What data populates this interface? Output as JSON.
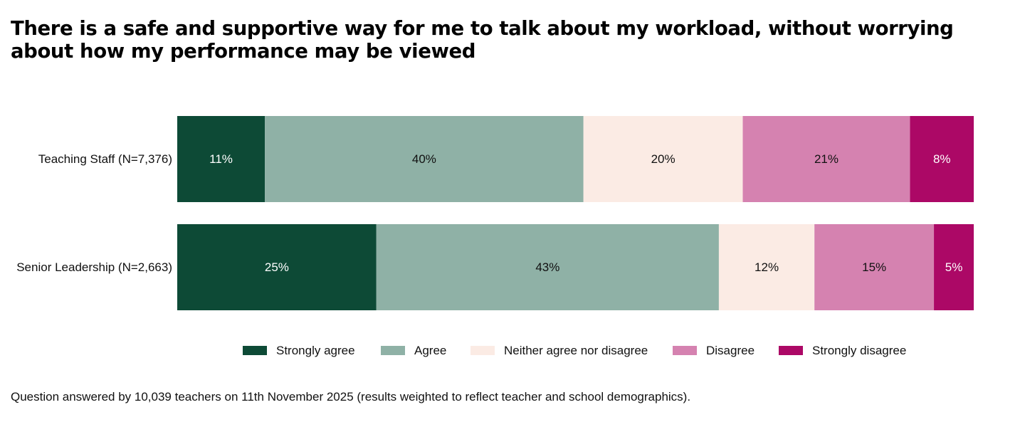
{
  "title": "There is a safe and supportive way for me to talk about my workload, without worrying about how my performance may be viewed",
  "footnote": "Question answered by 10,039 teachers on 11th November 2025 (results weighted to reflect teacher and school demographics).",
  "chart_data": {
    "type": "bar",
    "orientation": "horizontal",
    "stacked": true,
    "normalized": true,
    "title": "There is a safe and supportive way for me to talk about my workload, without worrying about how my performance may be viewed",
    "categories": [
      "Teaching Staff (N=7,376)",
      "Senior Leadership (N=2,663)"
    ],
    "series": [
      {
        "name": "Strongly agree",
        "color": "#0d4a36",
        "text_color": "#ffffff",
        "values": [
          11,
          25
        ],
        "labels": [
          "11%",
          "25%"
        ]
      },
      {
        "name": "Agree",
        "color": "#8fb1a6",
        "text_color": "#111111",
        "values": [
          40,
          43
        ],
        "labels": [
          "40%",
          "43%"
        ]
      },
      {
        "name": "Neither agree nor disagree",
        "color": "#fbebe4",
        "text_color": "#111111",
        "values": [
          20,
          12
        ],
        "labels": [
          "20%",
          "12%"
        ]
      },
      {
        "name": "Disagree",
        "color": "#d582b0",
        "text_color": "#111111",
        "values": [
          21,
          15
        ],
        "labels": [
          "21%",
          "15%"
        ]
      },
      {
        "name": "Strongly disagree",
        "color": "#ac0866",
        "text_color": "#ffffff",
        "values": [
          8,
          5
        ],
        "labels": [
          "8%",
          "5%"
        ]
      }
    ],
    "xlim": [
      0,
      100
    ],
    "grid": false,
    "legend_position": "bottom"
  }
}
